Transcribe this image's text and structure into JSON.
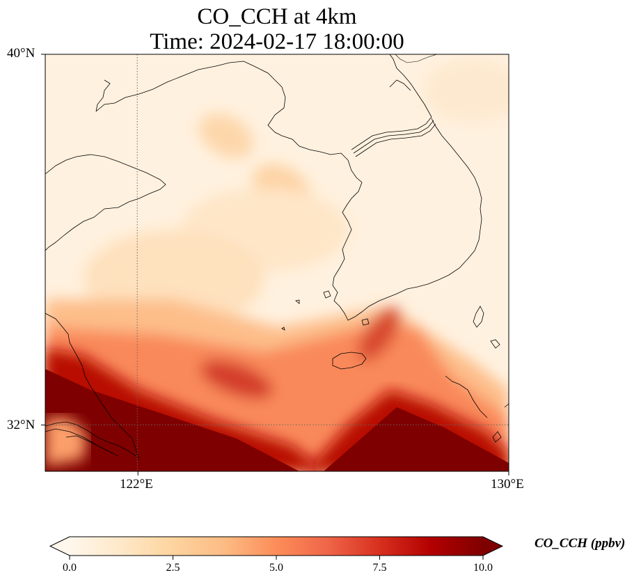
{
  "title": {
    "line1": "CO_CCH at 4km",
    "line2": "Time: 2024-02-17 18:00:00"
  },
  "map": {
    "lon_range": [
      120,
      130
    ],
    "lat_range": [
      31,
      40
    ],
    "projection": "PlateCarree",
    "gridlines": {
      "lon": [
        122
      ],
      "lat": [
        32
      ],
      "style": "dotted"
    },
    "lat_ticks": [
      {
        "value": 40,
        "label": "40°N"
      },
      {
        "value": 32,
        "label": "32°N"
      }
    ],
    "lon_ticks": [
      {
        "value": 122,
        "label": "122°E"
      },
      {
        "value": 130,
        "label": "130°E"
      }
    ],
    "field": "CO_CCH",
    "features": [
      "coastlines",
      "country borders"
    ]
  },
  "colorbar": {
    "colormap": "OrRd",
    "vmin": 0,
    "vmax": 10,
    "extend": "both",
    "orientation": "horizontal",
    "ticks": [
      "0.0",
      "2.5",
      "5.0",
      "7.5",
      "10.0"
    ],
    "label": "CO_CCH (ppbv)",
    "colors": [
      "#fff7ec",
      "#fee8c8",
      "#fdd49e",
      "#fdbb84",
      "#fc8d59",
      "#ef6548",
      "#d7301f",
      "#b30000",
      "#7f0000"
    ]
  }
}
